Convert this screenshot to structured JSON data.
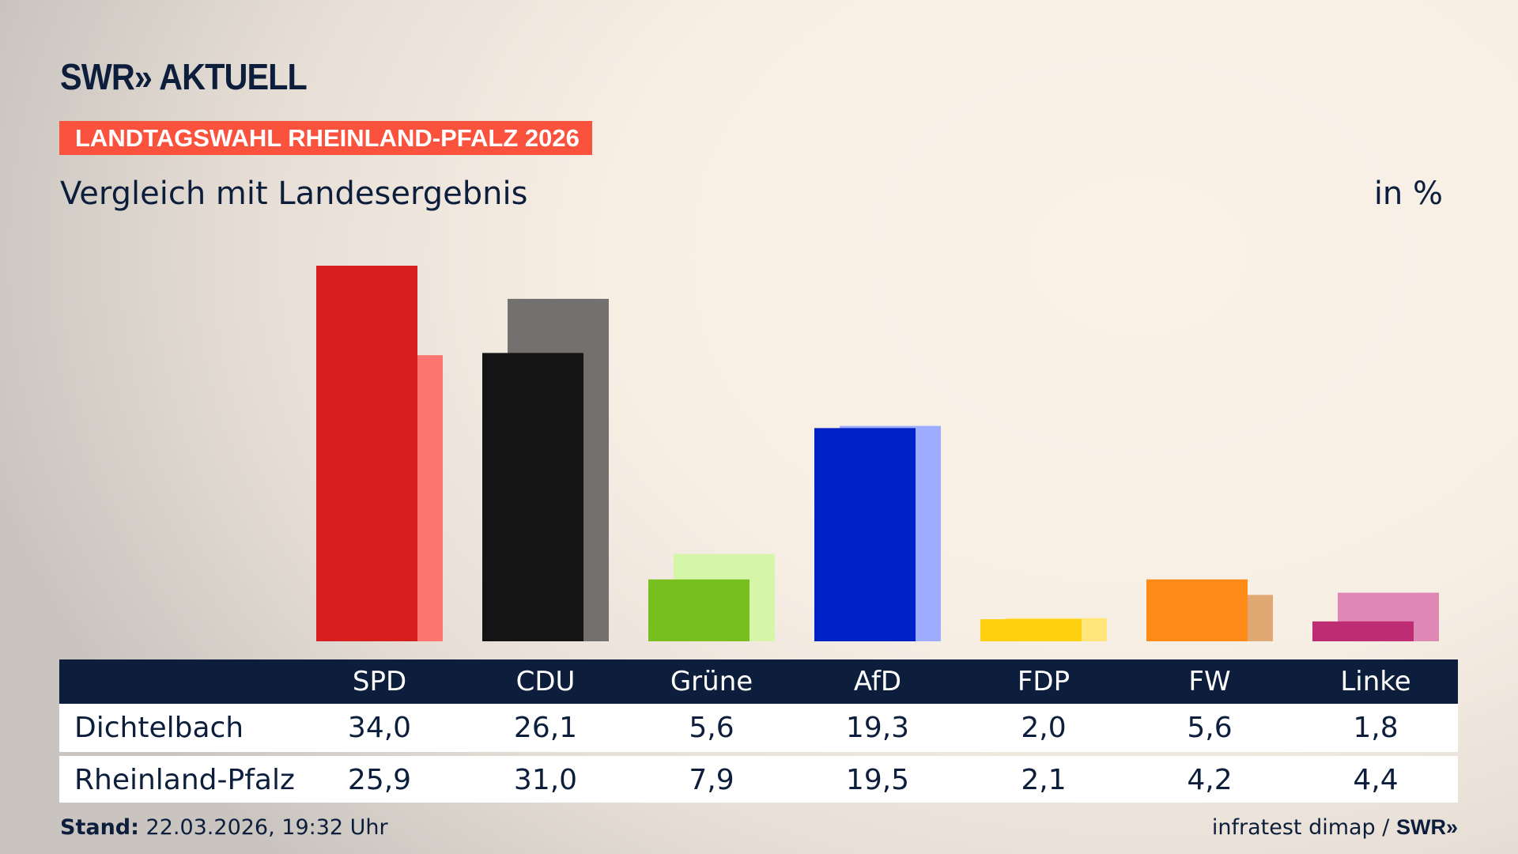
{
  "brand": {
    "logo": "SWR» AKTUELL"
  },
  "banner": "LANDTAGSWAHL RHEINLAND-PFALZ 2026",
  "subtitle": "Vergleich mit Landesergebnis",
  "unit": "in %",
  "footer": {
    "stand_label": "Stand:",
    "stand_value": "22.03.2026, 19:32 Uhr",
    "source": "infratest dimap /",
    "source_logo": "SWR»"
  },
  "chart_data": {
    "type": "bar",
    "categories": [
      "SPD",
      "CDU",
      "Grüne",
      "AfD",
      "FDP",
      "FW",
      "Linke"
    ],
    "series": [
      {
        "name": "Dichtelbach",
        "values": [
          34.0,
          26.1,
          5.6,
          19.3,
          2.0,
          5.6,
          1.8
        ],
        "labels": [
          "34,0",
          "26,1",
          "5,6",
          "19,3",
          "2,0",
          "5,6",
          "1,8"
        ],
        "colors": [
          "#d71f1f",
          "#141414",
          "#78be1e",
          "#0021c8",
          "#ffd00f",
          "#ff8a17",
          "#be2d74"
        ]
      },
      {
        "name": "Rheinland-Pfalz",
        "values": [
          25.9,
          31.0,
          7.9,
          19.5,
          2.1,
          4.2,
          4.4
        ],
        "labels": [
          "25,9",
          "31,0",
          "7,9",
          "19,5",
          "2,1",
          "4,2",
          "4,4"
        ],
        "colors": [
          "#ff7570",
          "#737170",
          "#d5f5a8",
          "#9dacff",
          "#ffe57a",
          "#e0a872",
          "#df87b5"
        ]
      }
    ],
    "ylim": [
      0,
      34
    ]
  }
}
